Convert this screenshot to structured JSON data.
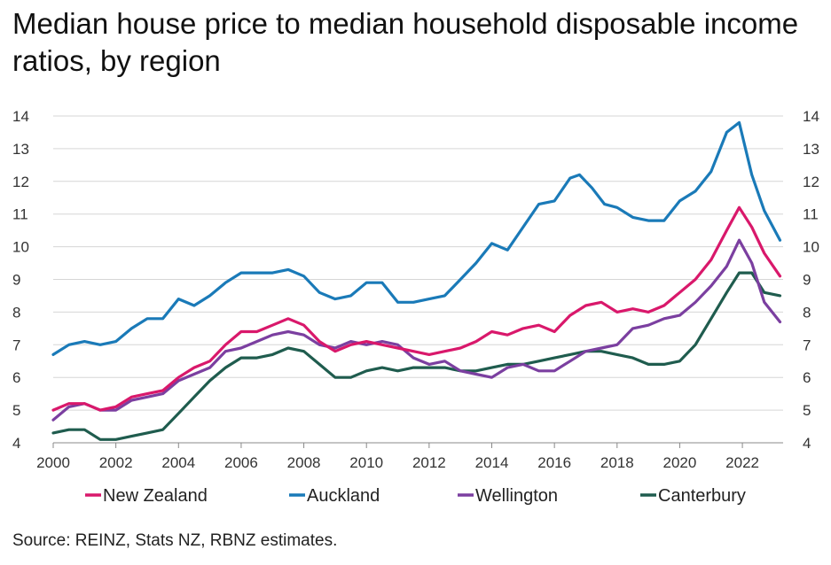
{
  "chart_data": {
    "type": "line",
    "title": "Median house price to median household disposable income ratios, by region",
    "source": "Source: REINZ, Stats NZ, RBNZ estimates.",
    "xlim": [
      2000,
      2023.3
    ],
    "ylim": [
      4,
      14
    ],
    "x_ticks": [
      "2000",
      "2002",
      "2004",
      "2006",
      "2008",
      "2010",
      "2012",
      "2014",
      "2016",
      "2018",
      "2020",
      "2022"
    ],
    "y_ticks": [
      "4",
      "5",
      "6",
      "7",
      "8",
      "9",
      "10",
      "11",
      "12",
      "13",
      "14"
    ],
    "grid": "horizontal",
    "legend_position": "bottom",
    "series": [
      {
        "name": "New Zealand",
        "color": "#d9186b",
        "x": [
          2000,
          2000.5,
          2001,
          2001.5,
          2002,
          2002.5,
          2003,
          2003.5,
          2004,
          2004.5,
          2005,
          2005.5,
          2006,
          2006.5,
          2007,
          2007.5,
          2008,
          2008.5,
          2009,
          2009.5,
          2010,
          2010.5,
          2011,
          2011.5,
          2012,
          2012.5,
          2013,
          2013.5,
          2014,
          2014.5,
          2015,
          2015.5,
          2016,
          2016.5,
          2017,
          2017.5,
          2018,
          2018.5,
          2019,
          2019.5,
          2020,
          2020.5,
          2021,
          2021.5,
          2021.9,
          2022.3,
          2022.7,
          2023.2
        ],
        "y": [
          5.0,
          5.2,
          5.2,
          5.0,
          5.1,
          5.4,
          5.5,
          5.6,
          6.0,
          6.3,
          6.5,
          7.0,
          7.4,
          7.4,
          7.6,
          7.8,
          7.6,
          7.1,
          6.8,
          7.0,
          7.1,
          7.0,
          6.9,
          6.8,
          6.7,
          6.8,
          6.9,
          7.1,
          7.4,
          7.3,
          7.5,
          7.6,
          7.4,
          7.9,
          8.2,
          8.3,
          8.0,
          8.1,
          8.0,
          8.2,
          8.6,
          9.0,
          9.6,
          10.5,
          11.2,
          10.6,
          9.8,
          9.1
        ]
      },
      {
        "name": "Auckland",
        "color": "#1a7ab8",
        "x": [
          2000,
          2000.5,
          2001,
          2001.5,
          2002,
          2002.5,
          2003,
          2003.5,
          2004,
          2004.5,
          2005,
          2005.5,
          2006,
          2006.5,
          2007,
          2007.5,
          2008,
          2008.5,
          2009,
          2009.5,
          2010,
          2010.5,
          2011,
          2011.5,
          2012,
          2012.5,
          2013,
          2013.5,
          2014,
          2014.5,
          2015,
          2015.5,
          2016,
          2016.5,
          2016.8,
          2017.2,
          2017.6,
          2018,
          2018.5,
          2019,
          2019.5,
          2020,
          2020.5,
          2021,
          2021.5,
          2021.9,
          2022.3,
          2022.7,
          2023.2
        ],
        "y": [
          6.7,
          7.0,
          7.1,
          7.0,
          7.1,
          7.5,
          7.8,
          7.8,
          8.4,
          8.2,
          8.5,
          8.9,
          9.2,
          9.2,
          9.2,
          9.3,
          9.1,
          8.6,
          8.4,
          8.5,
          8.9,
          8.9,
          8.3,
          8.3,
          8.4,
          8.5,
          9.0,
          9.5,
          10.1,
          9.9,
          10.6,
          11.3,
          11.4,
          12.1,
          12.2,
          11.8,
          11.3,
          11.2,
          10.9,
          10.8,
          10.8,
          11.4,
          11.7,
          12.3,
          13.5,
          13.8,
          12.2,
          11.1,
          10.2
        ]
      },
      {
        "name": "Wellington",
        "color": "#7b3fa0",
        "x": [
          2000,
          2000.5,
          2001,
          2001.5,
          2002,
          2002.5,
          2003,
          2003.5,
          2004,
          2004.5,
          2005,
          2005.5,
          2006,
          2006.5,
          2007,
          2007.5,
          2008,
          2008.5,
          2009,
          2009.5,
          2010,
          2010.5,
          2011,
          2011.5,
          2012,
          2012.5,
          2013,
          2013.5,
          2014,
          2014.5,
          2015,
          2015.5,
          2016,
          2016.5,
          2017,
          2017.5,
          2018,
          2018.5,
          2019,
          2019.5,
          2020,
          2020.5,
          2021,
          2021.5,
          2021.9,
          2022.3,
          2022.7,
          2023.2
        ],
        "y": [
          4.7,
          5.1,
          5.2,
          5.0,
          5.0,
          5.3,
          5.4,
          5.5,
          5.9,
          6.1,
          6.3,
          6.8,
          6.9,
          7.1,
          7.3,
          7.4,
          7.3,
          7.0,
          6.9,
          7.1,
          7.0,
          7.1,
          7.0,
          6.6,
          6.4,
          6.5,
          6.2,
          6.1,
          6.0,
          6.3,
          6.4,
          6.2,
          6.2,
          6.5,
          6.8,
          6.9,
          7.0,
          7.5,
          7.6,
          7.8,
          7.9,
          8.3,
          8.8,
          9.4,
          10.2,
          9.5,
          8.3,
          7.7
        ]
      },
      {
        "name": "Canterbury",
        "color": "#1f5c4e",
        "x": [
          2000,
          2000.5,
          2001,
          2001.5,
          2002,
          2002.5,
          2003,
          2003.5,
          2004,
          2004.5,
          2005,
          2005.5,
          2006,
          2006.5,
          2007,
          2007.5,
          2008,
          2008.5,
          2009,
          2009.5,
          2010,
          2010.5,
          2011,
          2011.5,
          2012,
          2012.5,
          2013,
          2013.5,
          2014,
          2014.5,
          2015,
          2015.5,
          2016,
          2016.5,
          2017,
          2017.5,
          2018,
          2018.5,
          2019,
          2019.5,
          2020,
          2020.5,
          2021,
          2021.5,
          2021.9,
          2022.3,
          2022.7,
          2023.2
        ],
        "y": [
          4.3,
          4.4,
          4.4,
          4.1,
          4.1,
          4.2,
          4.3,
          4.4,
          4.9,
          5.4,
          5.9,
          6.3,
          6.6,
          6.6,
          6.7,
          6.9,
          6.8,
          6.4,
          6.0,
          6.0,
          6.2,
          6.3,
          6.2,
          6.3,
          6.3,
          6.3,
          6.2,
          6.2,
          6.3,
          6.4,
          6.4,
          6.5,
          6.6,
          6.7,
          6.8,
          6.8,
          6.7,
          6.6,
          6.4,
          6.4,
          6.5,
          7.0,
          7.8,
          8.6,
          9.2,
          9.2,
          8.6,
          8.5
        ]
      }
    ]
  }
}
